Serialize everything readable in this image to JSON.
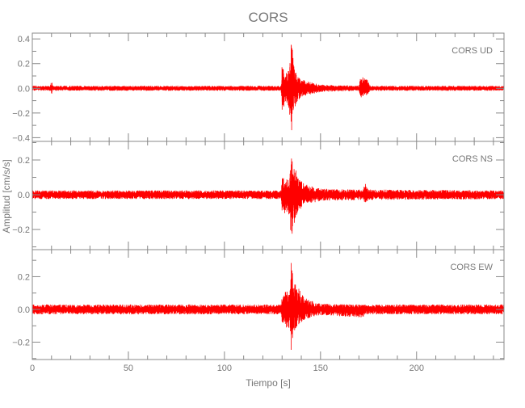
{
  "chart_data": {
    "type": "line",
    "title": "CORS",
    "xlabel": "Tiempo [s]",
    "ylabel": "Amplitud [cm/s/s]",
    "xlim": [
      0,
      245.5
    ],
    "xticks": [
      0,
      50,
      100,
      150,
      200
    ],
    "grid": false,
    "color": "#ff0000",
    "axis_color": "#888888",
    "panels": [
      {
        "name": "CORS   UD",
        "ylim": [
          -0.43,
          0.447
        ],
        "yticks": [
          0.4,
          0.2,
          0.0,
          -0.2,
          -0.4
        ],
        "envelope_note_columns": [
          "t",
          "max",
          "min"
        ],
        "envelope": [
          [
            0,
            0.02,
            -0.02
          ],
          [
            9,
            0.02,
            -0.02
          ],
          [
            10,
            0.06,
            -0.05
          ],
          [
            11,
            0.02,
            -0.02
          ],
          [
            129.5,
            0.02,
            -0.02
          ],
          [
            130,
            0.2,
            -0.18
          ],
          [
            133,
            0.12,
            -0.12
          ],
          [
            134.5,
            0.3,
            -0.28
          ],
          [
            135,
            0.43,
            -0.37
          ],
          [
            136,
            0.2,
            -0.2
          ],
          [
            138,
            0.1,
            -0.1
          ],
          [
            142,
            0.06,
            -0.06
          ],
          [
            150,
            0.03,
            -0.03
          ],
          [
            170,
            0.02,
            -0.02
          ],
          [
            171,
            0.1,
            -0.08
          ],
          [
            174,
            0.08,
            -0.06
          ],
          [
            176,
            0.02,
            -0.02
          ],
          [
            245.5,
            0.02,
            -0.02
          ]
        ]
      },
      {
        "name": "CORS   NS",
        "ylim": [
          -0.316,
          0.307
        ],
        "yticks": [
          0.2,
          0.0,
          -0.2
        ],
        "envelope": [
          [
            0,
            0.025,
            -0.025
          ],
          [
            129.5,
            0.025,
            -0.025
          ],
          [
            130,
            0.1,
            -0.1
          ],
          [
            134,
            0.1,
            -0.12
          ],
          [
            135,
            0.29,
            -0.31
          ],
          [
            136,
            0.2,
            -0.18
          ],
          [
            138,
            0.1,
            -0.1
          ],
          [
            142,
            0.06,
            -0.06
          ],
          [
            150,
            0.035,
            -0.035
          ],
          [
            172,
            0.03,
            -0.03
          ],
          [
            173,
            0.07,
            -0.05
          ],
          [
            175,
            0.03,
            -0.03
          ],
          [
            245.5,
            0.025,
            -0.025
          ]
        ]
      },
      {
        "name": "CORS   EW",
        "ylim": [
          -0.306,
          0.365
        ],
        "yticks": [
          0.2,
          0.0,
          -0.2
        ],
        "envelope": [
          [
            0,
            0.03,
            -0.03
          ],
          [
            129.5,
            0.03,
            -0.03
          ],
          [
            130,
            0.1,
            -0.1
          ],
          [
            134,
            0.12,
            -0.12
          ],
          [
            135,
            0.35,
            -0.3
          ],
          [
            136,
            0.2,
            -0.15
          ],
          [
            138,
            0.14,
            -0.1
          ],
          [
            142,
            0.07,
            -0.06
          ],
          [
            150,
            0.035,
            -0.035
          ],
          [
            172,
            0.03,
            -0.05
          ],
          [
            174,
            0.03,
            -0.03
          ],
          [
            245.5,
            0.03,
            -0.03
          ]
        ]
      }
    ]
  }
}
